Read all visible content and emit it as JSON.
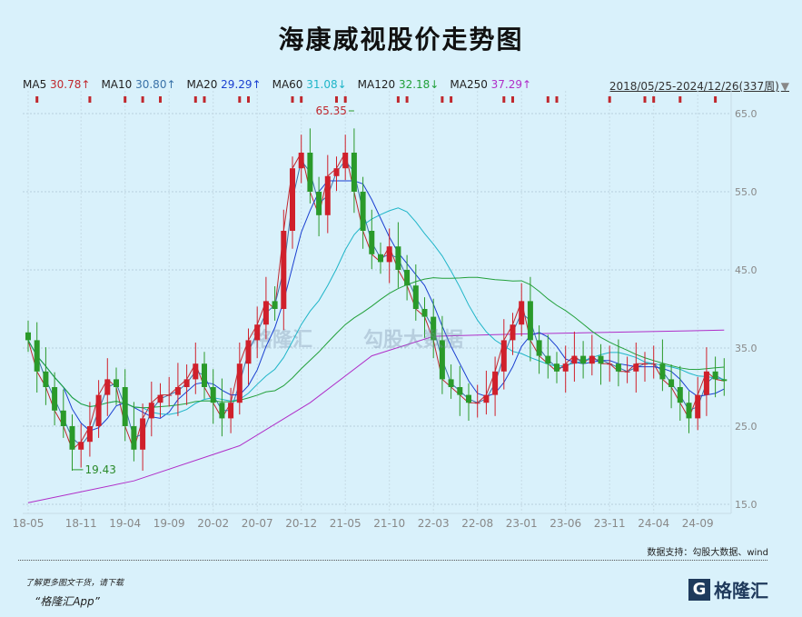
{
  "title": "海康威视股价走势图",
  "legend": [
    {
      "label": "MA5",
      "value": "30.78↑",
      "color": "#c0282e"
    },
    {
      "label": "MA10",
      "value": "30.80↑",
      "color": "#3a72a8"
    },
    {
      "label": "MA20",
      "value": "29.29↑",
      "color": "#1a3fd0"
    },
    {
      "label": "MA60",
      "value": "31.08↓",
      "color": "#1fb5c8"
    },
    {
      "label": "MA120",
      "value": "32.18↓",
      "color": "#22a03a"
    },
    {
      "label": "MA250",
      "value": "37.29↑",
      "color": "#b02ec8"
    }
  ],
  "range_label": "2018/05/25-2024/12/26(337周)",
  "range_arrow": "▼",
  "source": "数据支持：勾股大数据、wind",
  "promo_line1": "了解更多图文干货，请下载",
  "promo_line2": "“格隆汇App”",
  "logo_text": "格隆汇",
  "logo_mark": "G",
  "watermarks": [
    "格隆汇",
    "勾股大数据"
  ],
  "chart_data": {
    "type": "candlestick",
    "title": "海康威视股价走势图",
    "period": "weekly (approximated monthly)",
    "start": "2018-05",
    "ylim": [
      14,
      67
    ],
    "yticks": [
      "15.0",
      "25.0",
      "35.0",
      "45.0",
      "55.0",
      "65.0"
    ],
    "xticks": [
      "18-05",
      "18-11",
      "19-04",
      "19-09",
      "20-02",
      "20-07",
      "20-12",
      "21-05",
      "21-10",
      "22-03",
      "22-08",
      "23-01",
      "23-06",
      "23-11",
      "24-04",
      "24-09"
    ],
    "xtick_month_index": [
      0,
      6,
      11,
      16,
      21,
      26,
      31,
      36,
      41,
      46,
      51,
      56,
      61,
      66,
      71,
      76
    ],
    "closes": [
      36,
      32,
      30,
      27,
      25,
      22,
      23,
      25,
      29,
      31,
      30,
      25,
      22,
      26,
      28,
      29,
      29,
      30,
      31,
      33,
      30,
      28,
      26,
      28,
      33,
      36,
      38,
      41,
      40,
      50,
      58,
      60,
      55,
      52,
      57,
      58,
      60,
      55,
      50,
      47,
      46,
      48,
      45,
      43,
      40,
      39,
      36,
      31,
      30,
      29,
      28,
      28,
      29,
      32,
      36,
      38,
      41,
      36,
      34,
      33,
      32,
      33,
      34,
      33,
      34,
      33,
      33,
      32,
      32,
      33,
      33,
      33,
      31,
      30,
      28,
      26,
      29,
      32,
      31,
      30.78
    ],
    "ma250": [
      [
        "2018-05",
        15.2
      ],
      [
        "2019-05",
        18
      ],
      [
        "2020-05",
        22.5
      ],
      [
        "2021-01",
        28
      ],
      [
        "2021-08",
        34
      ],
      [
        "2022-03",
        36.5
      ],
      [
        "2023-01",
        36.8
      ],
      [
        "2024-12",
        37.29
      ]
    ],
    "annotations": [
      {
        "label": "65.35",
        "month_index": 37,
        "value": 65.35,
        "type": "high"
      },
      {
        "label": "19.43",
        "month_index": 5,
        "value": 19.43,
        "type": "low"
      }
    ],
    "signal_markers": [
      1,
      7,
      11,
      13,
      15,
      19,
      20,
      24,
      25,
      30,
      31,
      35,
      36,
      42,
      43,
      47,
      48,
      54,
      55,
      59,
      60,
      66,
      70,
      71,
      74,
      78
    ]
  }
}
